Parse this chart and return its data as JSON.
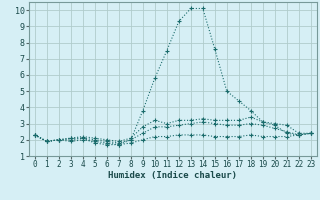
{
  "xlabel": "Humidex (Indice chaleur)",
  "background_color": "#d6eff5",
  "grid_color": "#b0cccc",
  "line_color": "#1a6b6b",
  "xlim": [
    -0.5,
    23.5
  ],
  "ylim": [
    1,
    10.5
  ],
  "yticks": [
    1,
    2,
    3,
    4,
    5,
    6,
    7,
    8,
    9,
    10
  ],
  "xticks": [
    0,
    1,
    2,
    3,
    4,
    5,
    6,
    7,
    8,
    9,
    10,
    11,
    12,
    13,
    14,
    15,
    16,
    17,
    18,
    19,
    20,
    21,
    22,
    23
  ],
  "lines": [
    {
      "x": [
        0,
        1,
        2,
        3,
        4,
        5,
        6,
        7,
        8,
        9,
        10,
        11,
        12,
        13,
        14,
        15,
        16,
        17,
        18,
        19,
        20,
        21,
        22,
        23
      ],
      "y": [
        2.3,
        1.9,
        2.0,
        2.1,
        2.1,
        1.8,
        1.7,
        1.7,
        2.0,
        3.8,
        5.8,
        7.5,
        9.3,
        10.1,
        10.1,
        7.6,
        5.0,
        4.4,
        3.8,
        3.1,
        2.9,
        2.4,
        2.3,
        2.4
      ]
    },
    {
      "x": [
        0,
        1,
        2,
        3,
        4,
        5,
        6,
        7,
        8,
        9,
        10,
        11,
        12,
        13,
        14,
        15,
        16,
        17,
        18,
        19,
        20,
        21,
        22,
        23
      ],
      "y": [
        2.3,
        1.9,
        2.0,
        2.1,
        2.2,
        2.1,
        2.0,
        1.9,
        2.1,
        2.8,
        3.2,
        3.0,
        3.2,
        3.2,
        3.3,
        3.2,
        3.2,
        3.2,
        3.4,
        3.1,
        3.0,
        2.9,
        2.4,
        2.4
      ]
    },
    {
      "x": [
        0,
        1,
        2,
        3,
        4,
        5,
        6,
        7,
        8,
        9,
        10,
        11,
        12,
        13,
        14,
        15,
        16,
        17,
        18,
        19,
        20,
        21,
        22,
        23
      ],
      "y": [
        2.3,
        1.9,
        2.0,
        2.0,
        2.1,
        2.0,
        1.9,
        1.8,
        2.0,
        2.4,
        2.8,
        2.8,
        2.9,
        3.0,
        3.1,
        3.0,
        2.9,
        2.9,
        3.0,
        2.9,
        2.7,
        2.5,
        2.3,
        2.4
      ]
    },
    {
      "x": [
        0,
        1,
        2,
        3,
        4,
        5,
        6,
        7,
        8,
        9,
        10,
        11,
        12,
        13,
        14,
        15,
        16,
        17,
        18,
        19,
        20,
        21,
        22,
        23
      ],
      "y": [
        2.3,
        1.9,
        2.0,
        1.9,
        2.0,
        1.9,
        1.8,
        1.7,
        1.8,
        2.0,
        2.2,
        2.2,
        2.3,
        2.3,
        2.3,
        2.2,
        2.2,
        2.2,
        2.3,
        2.2,
        2.2,
        2.2,
        2.3,
        2.4
      ]
    }
  ]
}
